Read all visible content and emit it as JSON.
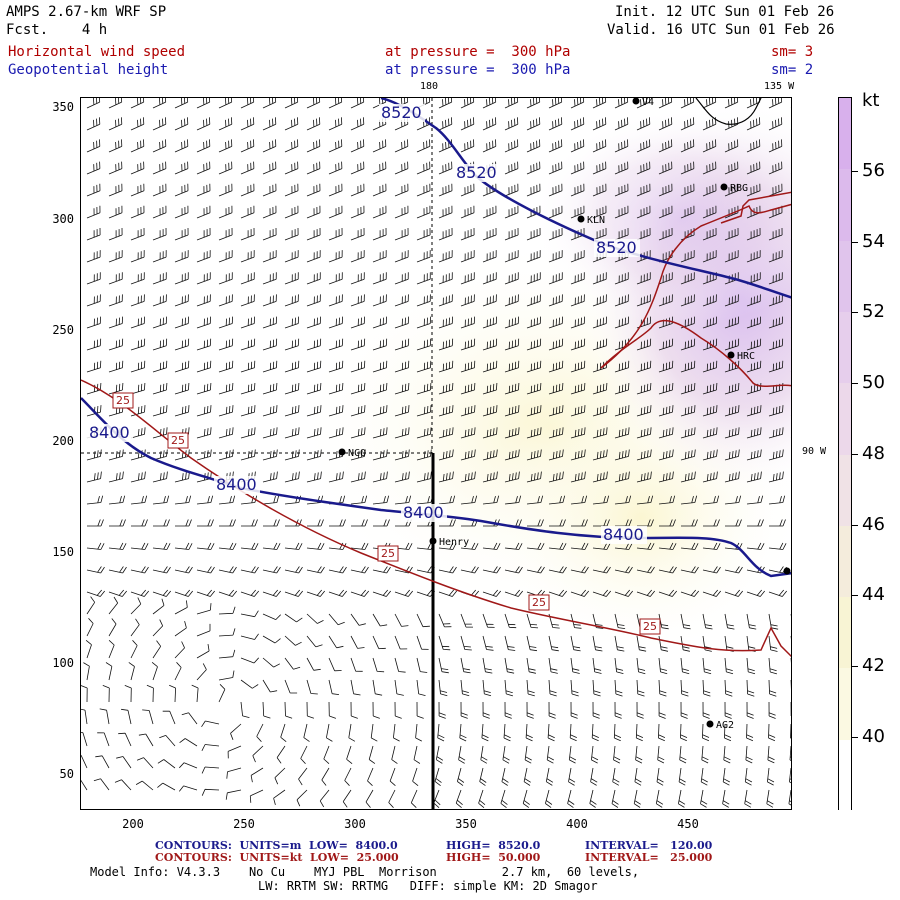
{
  "header": {
    "model_line": "AMPS 2.67-km WRF SP",
    "fcst_line": "Fcst.    4 h",
    "init_line": "Init. 12 UTC Sun 01 Feb 26",
    "valid_line": "Valid. 16 UTC Sun 01 Feb 26",
    "field1_name": "Horizontal wind speed",
    "field1_level": "at pressure =  300 hPa",
    "field1_sm": "sm= 3",
    "field2_name": "Geopotential height",
    "field2_level": "at pressure =  300 hPa",
    "field2_sm": "sm= 2"
  },
  "map_labels": {
    "lon_180": "180",
    "lon_135w": "135 W",
    "lon_90w": "90 W"
  },
  "stations": [
    {
      "name": "NCO"
    },
    {
      "name": "Henry"
    },
    {
      "name": "KLN"
    },
    {
      "name": "RBG"
    },
    {
      "name": "HRC"
    },
    {
      "name": "AG2"
    },
    {
      "name": "V4"
    }
  ],
  "height_contour_labels": [
    "8520",
    "8520",
    "8520",
    "8400",
    "8400",
    "8400",
    "8400"
  ],
  "speed_contour_labels": [
    "25",
    "25",
    "25",
    "25",
    "25"
  ],
  "axes": {
    "y_ticks": [
      "350",
      "300",
      "250",
      "200",
      "150",
      "100",
      "50"
    ],
    "x_ticks": [
      "200",
      "250",
      "300",
      "350",
      "400",
      "450"
    ]
  },
  "colorbar": {
    "unit": "kt",
    "labels": [
      "56",
      "54",
      "52",
      "50",
      "48",
      "46",
      "44",
      "42",
      "40"
    ],
    "colors": [
      "#d8b0ec",
      "#dcbaec",
      "#e0c4ec",
      "#e6ceec",
      "#ecd8ea",
      "#f0e2e6",
      "#f4ecdc",
      "#f8f4d4",
      "#fbf9e2",
      "#ffffff"
    ]
  },
  "footer": {
    "contours1_label": "CONTOURS:  UNITS=m  LOW=  8400.0",
    "contours1_high": "HIGH=  8520.0",
    "contours1_interval": "INTERVAL=   120.00",
    "contours2_label": "CONTOURS:  UNITS=kt  LOW=  25.000",
    "contours2_high": "HIGH=  50.000",
    "contours2_interval": "INTERVAL=   25.000",
    "model_info": "Model Info: V4.3.3    No Cu    MYJ PBL  Morrison         2.7 km,  60 levels,",
    "model_info2": "LW: RRTM SW: RRTMG   DIFF: simple KM: 2D Smagor"
  },
  "colors": {
    "height_contour": "#1a1a8c",
    "speed_contour": "#a01818",
    "shade_light": "#fbf8dc",
    "shade_purple": "#dcc0ee"
  }
}
